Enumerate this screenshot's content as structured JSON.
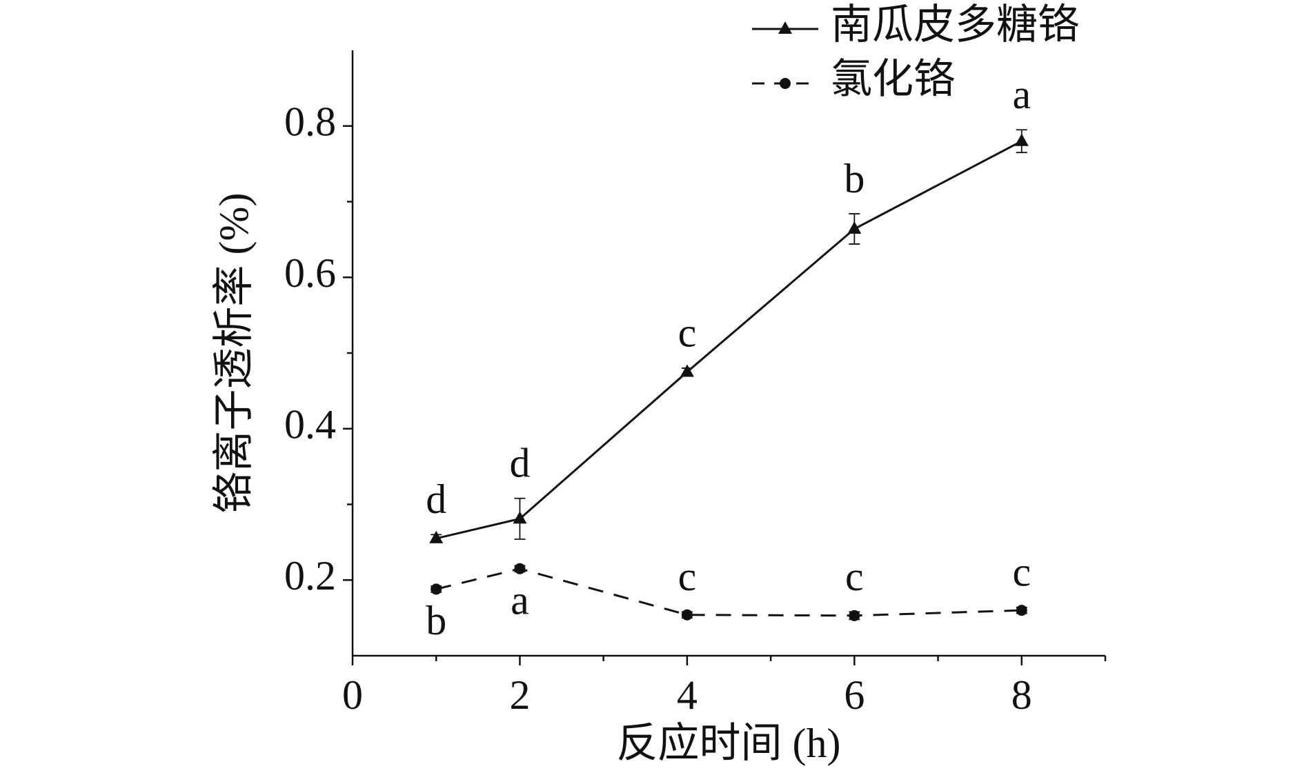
{
  "chart_data": {
    "type": "line",
    "xlabel": "反应时间 (h)",
    "ylabel": "铬离子透析率 (%)",
    "x": [
      1,
      2,
      4,
      6,
      8
    ],
    "series": [
      {
        "name": "南瓜皮多糖铬",
        "color": "#111111",
        "marker": "triangle",
        "line_style": "solid",
        "values": [
          0.255,
          0.281,
          0.475,
          0.664,
          0.78
        ],
        "errors": [
          0.005,
          0.027,
          0.005,
          0.02,
          0.015
        ],
        "labels": [
          "d",
          "d",
          "c",
          "b",
          "a"
        ],
        "label_positions": [
          "above",
          "above",
          "above",
          "above",
          "above"
        ]
      },
      {
        "name": "氯化铬",
        "color": "#111111",
        "marker": "circle",
        "line_style": "dashed",
        "values": [
          0.188,
          0.215,
          0.154,
          0.153,
          0.16
        ],
        "errors": [
          0.004,
          0.004,
          0.004,
          0.005,
          0.004
        ],
        "labels": [
          "b",
          "a",
          "c",
          "c",
          "c"
        ],
        "label_positions": [
          "below",
          "below",
          "above",
          "above",
          "above"
        ]
      }
    ],
    "xlim": [
      0,
      9
    ],
    "ylim": [
      0.1,
      0.9
    ],
    "xticks": [
      0,
      2,
      4,
      6,
      8
    ],
    "xminorticks": [
      1,
      3,
      5,
      7,
      9
    ],
    "yticks": [
      0.2,
      0.4,
      0.6,
      0.8
    ],
    "yminorticks": [
      0.3,
      0.5,
      0.7
    ],
    "legend": "upper right"
  }
}
